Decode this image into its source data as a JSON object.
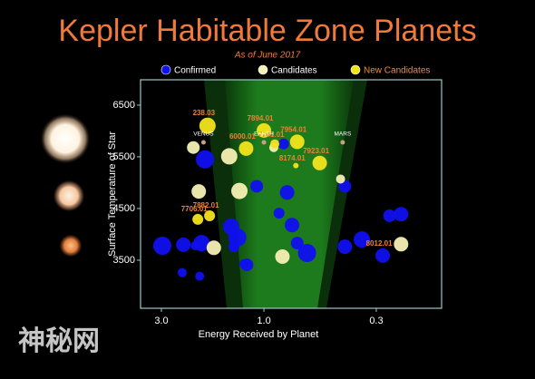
{
  "chart_data": {
    "type": "scatter",
    "title": "Kepler Habitable Zone Planets",
    "subtitle": "As of June 2017",
    "x_label": "Energy Received by Planet",
    "y_label": "Surface Temperature of Star",
    "xscale": "log",
    "xlim": [
      3.75,
      0.149
    ],
    "xticks": [
      {
        "value": 3,
        "label": "3.0"
      },
      {
        "value": 1,
        "label": "1.0"
      },
      {
        "value": 0.3,
        "label": "0.3"
      }
    ],
    "ylim": [
      2570,
      6990
    ],
    "yticks": [
      3500,
      4500,
      5500,
      6500
    ],
    "series": [
      {
        "name": "Confirmed",
        "color": "#1010f0",
        "x": [
          2.97,
          2.37,
          1.95,
          2.4,
          1.99,
          1.88,
          1.42,
          1.33,
          1.38,
          1.24,
          1.2,
          1.08,
          0.81,
          0.78,
          0.74,
          0.85,
          0.7,
          0.63,
          0.42,
          0.42,
          0.35,
          0.28,
          0.23,
          0.26,
          2.09
        ],
        "values": [
          3780,
          3800,
          3830,
          3260,
          3190,
          5450,
          4150,
          3940,
          3760,
          3430,
          3410,
          4930,
          5750,
          4810,
          4180,
          4410,
          3830,
          3640,
          3760,
          4930,
          3900,
          3590,
          4390,
          4360,
          3780
        ],
        "sizes": [
          10,
          8,
          9,
          5,
          5,
          10,
          9,
          10,
          6,
          5,
          7,
          7,
          6,
          8,
          8,
          6,
          7,
          10,
          8,
          7,
          9,
          8,
          8,
          7,
          5
        ],
        "labels": [
          null,
          null,
          null,
          null,
          null,
          null,
          null,
          null,
          null,
          null,
          null,
          null,
          null,
          null,
          null,
          null,
          null,
          null,
          null,
          null,
          null,
          "8012.01",
          null,
          null,
          null
        ]
      },
      {
        "name": "Candidates",
        "color": "#f6f0b4",
        "x": [
          2.13,
          2.01,
          1.71,
          1.45,
          1.3,
          0.82,
          0.44,
          0.23,
          0.9
        ],
        "values": [
          5680,
          4830,
          3740,
          5510,
          4840,
          3570,
          5070,
          3810,
          5680
        ],
        "sizes": [
          7,
          8,
          8,
          9,
          9,
          8,
          5,
          8,
          5
        ]
      },
      {
        "name": "New Candidates",
        "color": "#f2e41c",
        "x": [
          1.83,
          1.79,
          2.03,
          1.21,
          1.0,
          0.7,
          0.89,
          0.71,
          0.55
        ],
        "values": [
          6100,
          4360,
          4290,
          5660,
          6010,
          5790,
          5750,
          5330,
          5380
        ],
        "sizes": [
          9,
          6,
          6,
          8,
          8,
          8,
          5,
          3,
          8
        ],
        "labels": [
          "238.03",
          "7882.01",
          "7706.01",
          "6000.01",
          "7894.01",
          "7954.01",
          "7741.01",
          "8174.01",
          "7923.01"
        ]
      }
    ],
    "reference_planets": [
      {
        "name": "VENUS",
        "x": 1.91,
        "y": 5780
      },
      {
        "name": "EARTH",
        "x": 1.0,
        "y": 5780
      },
      {
        "name": "MARS",
        "x": 0.43,
        "y": 5780
      }
    ],
    "watermark": "神秘网"
  }
}
